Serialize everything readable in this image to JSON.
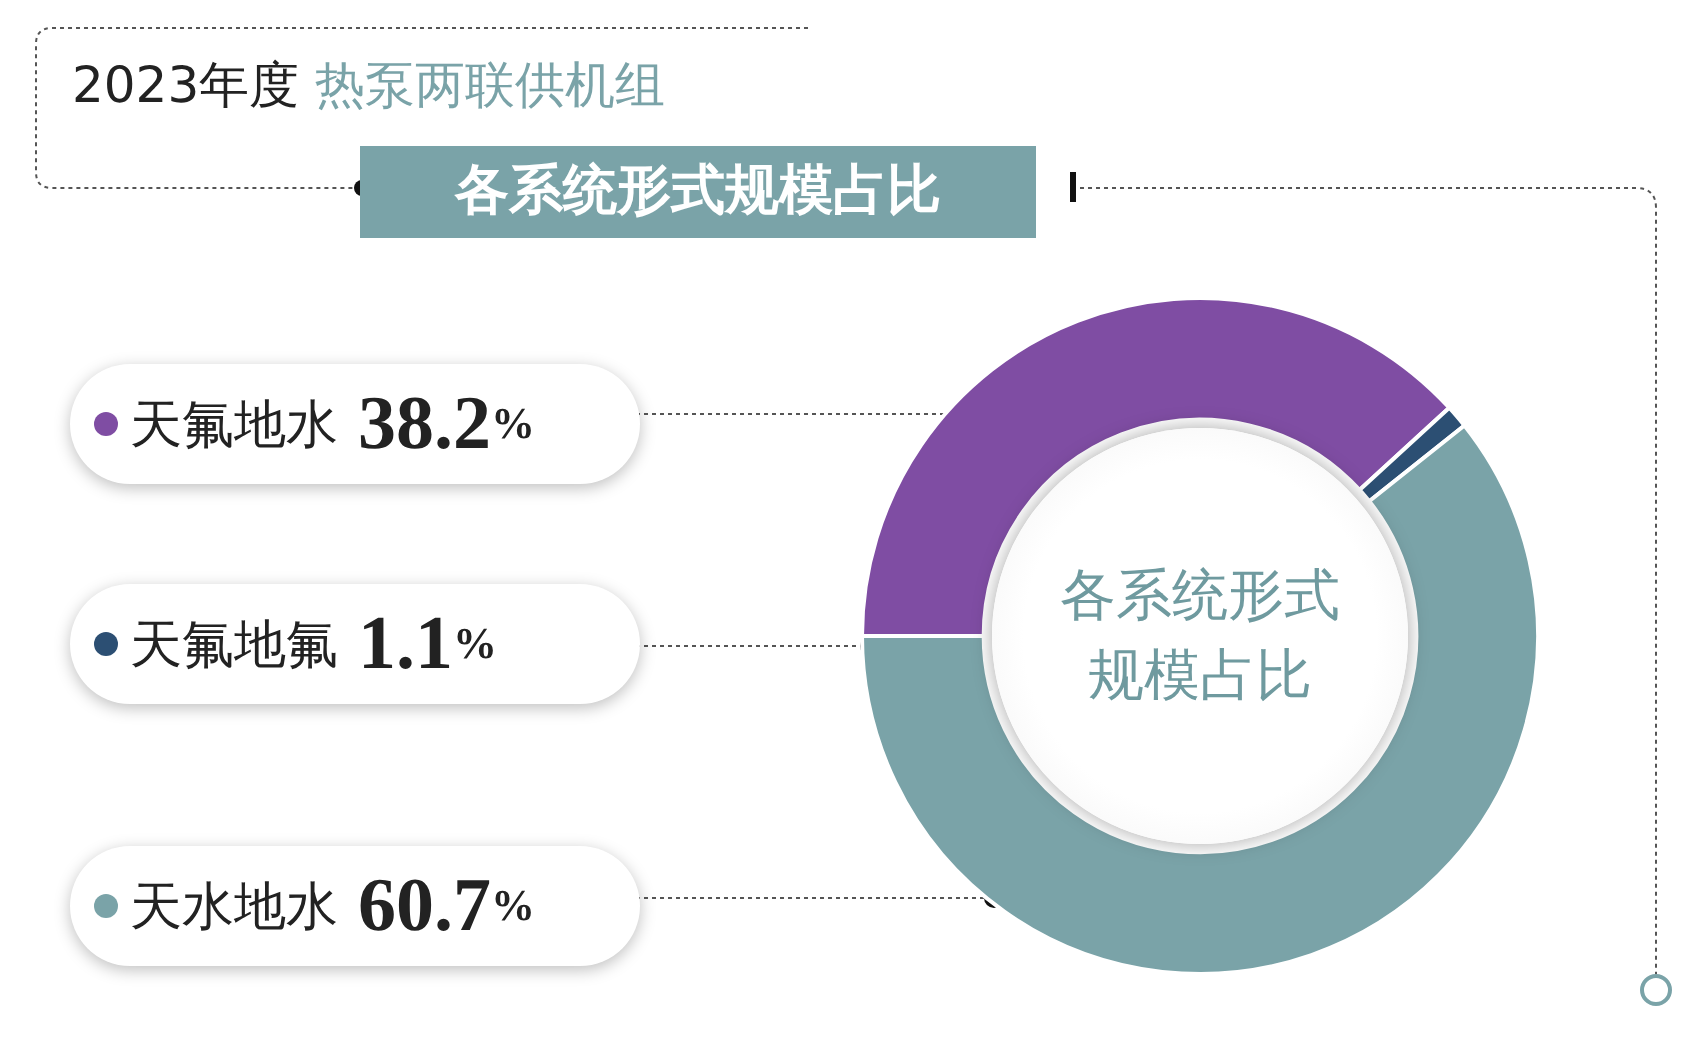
{
  "chart_data": {
    "type": "donut",
    "title": "2023年度",
    "subtitle": "热泵两联供机组",
    "annotations": [
      "各系统形式规模占比",
      "各系统形式规模占比"
    ],
    "categories": [
      "天氟地水",
      "天氟地氟",
      "天水地水"
    ],
    "values": [
      38.2,
      1.1,
      60.7
    ],
    "value_labels": [
      "38.2%",
      "1.1%",
      "60.7%"
    ],
    "colors": [
      "#7f4da3",
      "#2c4f73",
      "#7aa3a8"
    ],
    "legend": "left"
  }
}
